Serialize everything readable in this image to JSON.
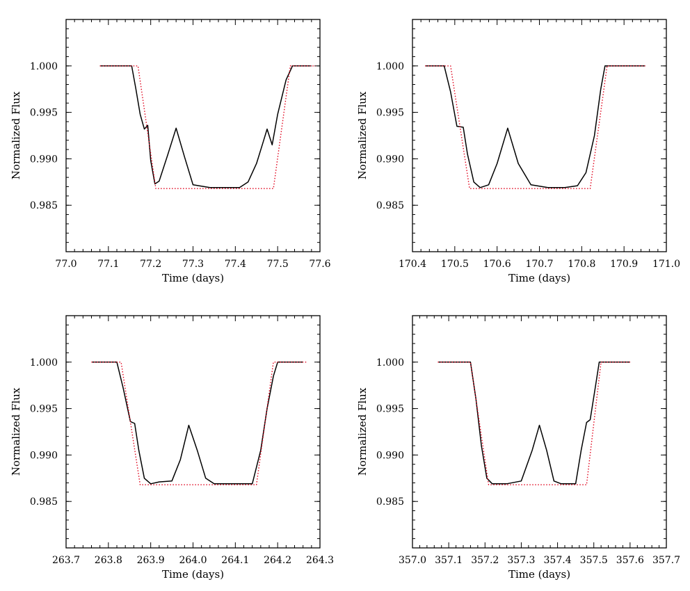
{
  "colors": {
    "observed": "#000000",
    "model": "#e0001a",
    "frame": "#000000"
  },
  "chart_data": [
    {
      "type": "line",
      "xlabel": "Time (days)",
      "ylabel": "Normalized Flux",
      "xlim": [
        77.0,
        77.6
      ],
      "ylim": [
        0.98,
        1.005
      ],
      "xticks": [
        "77.0",
        "77.1",
        "77.2",
        "77.3",
        "77.4",
        "77.5",
        "77.6"
      ],
      "yticks": [
        "0.985",
        "0.990",
        "0.995",
        "1.000"
      ],
      "series": [
        {
          "style": "solid",
          "x": [
            77.08,
            77.155,
            77.165,
            77.175,
            77.185,
            77.193,
            77.2,
            77.21,
            77.22,
            77.24,
            77.26,
            77.28,
            77.3,
            77.34,
            77.38,
            77.41,
            77.43,
            77.45,
            77.465,
            77.475,
            77.487,
            77.5,
            77.52,
            77.535,
            77.58
          ],
          "y": [
            1.0,
            1.0,
            0.9975,
            0.9948,
            0.9932,
            0.9936,
            0.9898,
            0.9873,
            0.9876,
            0.9904,
            0.9933,
            0.9902,
            0.9872,
            0.9869,
            0.9869,
            0.9869,
            0.9875,
            0.9895,
            0.9917,
            0.9932,
            0.9915,
            0.9948,
            0.9985,
            1.0,
            1.0
          ]
        },
        {
          "style": "dotted",
          "x": [
            77.08,
            77.17,
            77.212,
            77.49,
            77.53,
            77.59
          ],
          "y": [
            1.0,
            1.0,
            0.9868,
            0.9868,
            1.0,
            1.0
          ]
        }
      ]
    },
    {
      "type": "line",
      "xlabel": "Time (days)",
      "ylabel": "Normalized Flux",
      "xlim": [
        170.4,
        171.0
      ],
      "ylim": [
        0.98,
        1.005
      ],
      "xticks": [
        "170.4",
        "170.5",
        "170.6",
        "170.7",
        "170.8",
        "170.9",
        "171.0"
      ],
      "yticks": [
        "0.985",
        "0.990",
        "0.995",
        "1.000"
      ],
      "series": [
        {
          "style": "solid",
          "x": [
            170.43,
            170.475,
            170.49,
            170.505,
            170.52,
            170.53,
            170.545,
            170.56,
            170.58,
            170.6,
            170.625,
            170.65,
            170.68,
            170.72,
            170.76,
            170.79,
            170.81,
            170.83,
            170.845,
            170.855,
            170.95
          ],
          "y": [
            1.0,
            1.0,
            0.9972,
            0.9935,
            0.9934,
            0.9905,
            0.9875,
            0.9869,
            0.9872,
            0.9895,
            0.9933,
            0.9895,
            0.9872,
            0.9869,
            0.9869,
            0.9871,
            0.9885,
            0.9925,
            0.9975,
            1.0,
            1.0
          ]
        },
        {
          "style": "dotted",
          "x": [
            170.43,
            170.49,
            170.535,
            170.82,
            170.86,
            170.95
          ],
          "y": [
            1.0,
            1.0,
            0.9868,
            0.9868,
            1.0,
            1.0
          ]
        }
      ]
    },
    {
      "type": "line",
      "xlabel": "Time (days)",
      "ylabel": "Normalized Flux",
      "xlim": [
        263.7,
        264.3
      ],
      "ylim": [
        0.98,
        1.005
      ],
      "xticks": [
        "263.7",
        "263.8",
        "263.9",
        "264.0",
        "264.1",
        "264.2",
        "264.3"
      ],
      "yticks": [
        "0.985",
        "0.990",
        "0.995",
        "1.000"
      ],
      "series": [
        {
          "style": "solid",
          "x": [
            263.76,
            263.82,
            263.835,
            263.852,
            263.862,
            263.872,
            263.885,
            263.9,
            263.92,
            263.95,
            263.97,
            263.99,
            264.01,
            264.03,
            264.05,
            264.1,
            264.14,
            264.16,
            264.175,
            264.19,
            264.2,
            264.26
          ],
          "y": [
            1.0,
            1.0,
            0.9972,
            0.9936,
            0.9934,
            0.9905,
            0.9875,
            0.9869,
            0.9871,
            0.9872,
            0.9895,
            0.9932,
            0.9905,
            0.9875,
            0.9869,
            0.9869,
            0.9869,
            0.9905,
            0.995,
            0.9985,
            1.0,
            1.0
          ]
        },
        {
          "style": "dotted",
          "x": [
            263.76,
            263.83,
            263.875,
            264.15,
            264.19,
            264.27
          ],
          "y": [
            1.0,
            1.0,
            0.9868,
            0.9868,
            1.0,
            1.0
          ]
        }
      ]
    },
    {
      "type": "line",
      "xlabel": "Time (days)",
      "ylabel": "Normalized Flux",
      "xlim": [
        357.0,
        357.7
      ],
      "ylim": [
        0.98,
        1.005
      ],
      "xticks": [
        "357.0",
        "357.1",
        "357.2",
        "357.3",
        "357.4",
        "357.5",
        "357.6",
        "357.7"
      ],
      "yticks": [
        "0.985",
        "0.990",
        "0.995",
        "1.000"
      ],
      "series": [
        {
          "style": "solid",
          "x": [
            357.07,
            357.16,
            357.175,
            357.19,
            357.205,
            357.22,
            357.26,
            357.3,
            357.33,
            357.35,
            357.37,
            357.39,
            357.41,
            357.45,
            357.465,
            357.48,
            357.49,
            357.505,
            357.515,
            357.6
          ],
          "y": [
            1.0,
            1.0,
            0.996,
            0.991,
            0.9875,
            0.9869,
            0.9869,
            0.9872,
            0.9905,
            0.9932,
            0.9905,
            0.9872,
            0.9869,
            0.9869,
            0.9905,
            0.9935,
            0.9938,
            0.9975,
            1.0,
            1.0
          ]
        },
        {
          "style": "dotted",
          "x": [
            357.07,
            357.16,
            357.21,
            357.48,
            357.52,
            357.6
          ],
          "y": [
            1.0,
            1.0,
            0.9868,
            0.9868,
            1.0,
            1.0
          ]
        }
      ]
    }
  ]
}
